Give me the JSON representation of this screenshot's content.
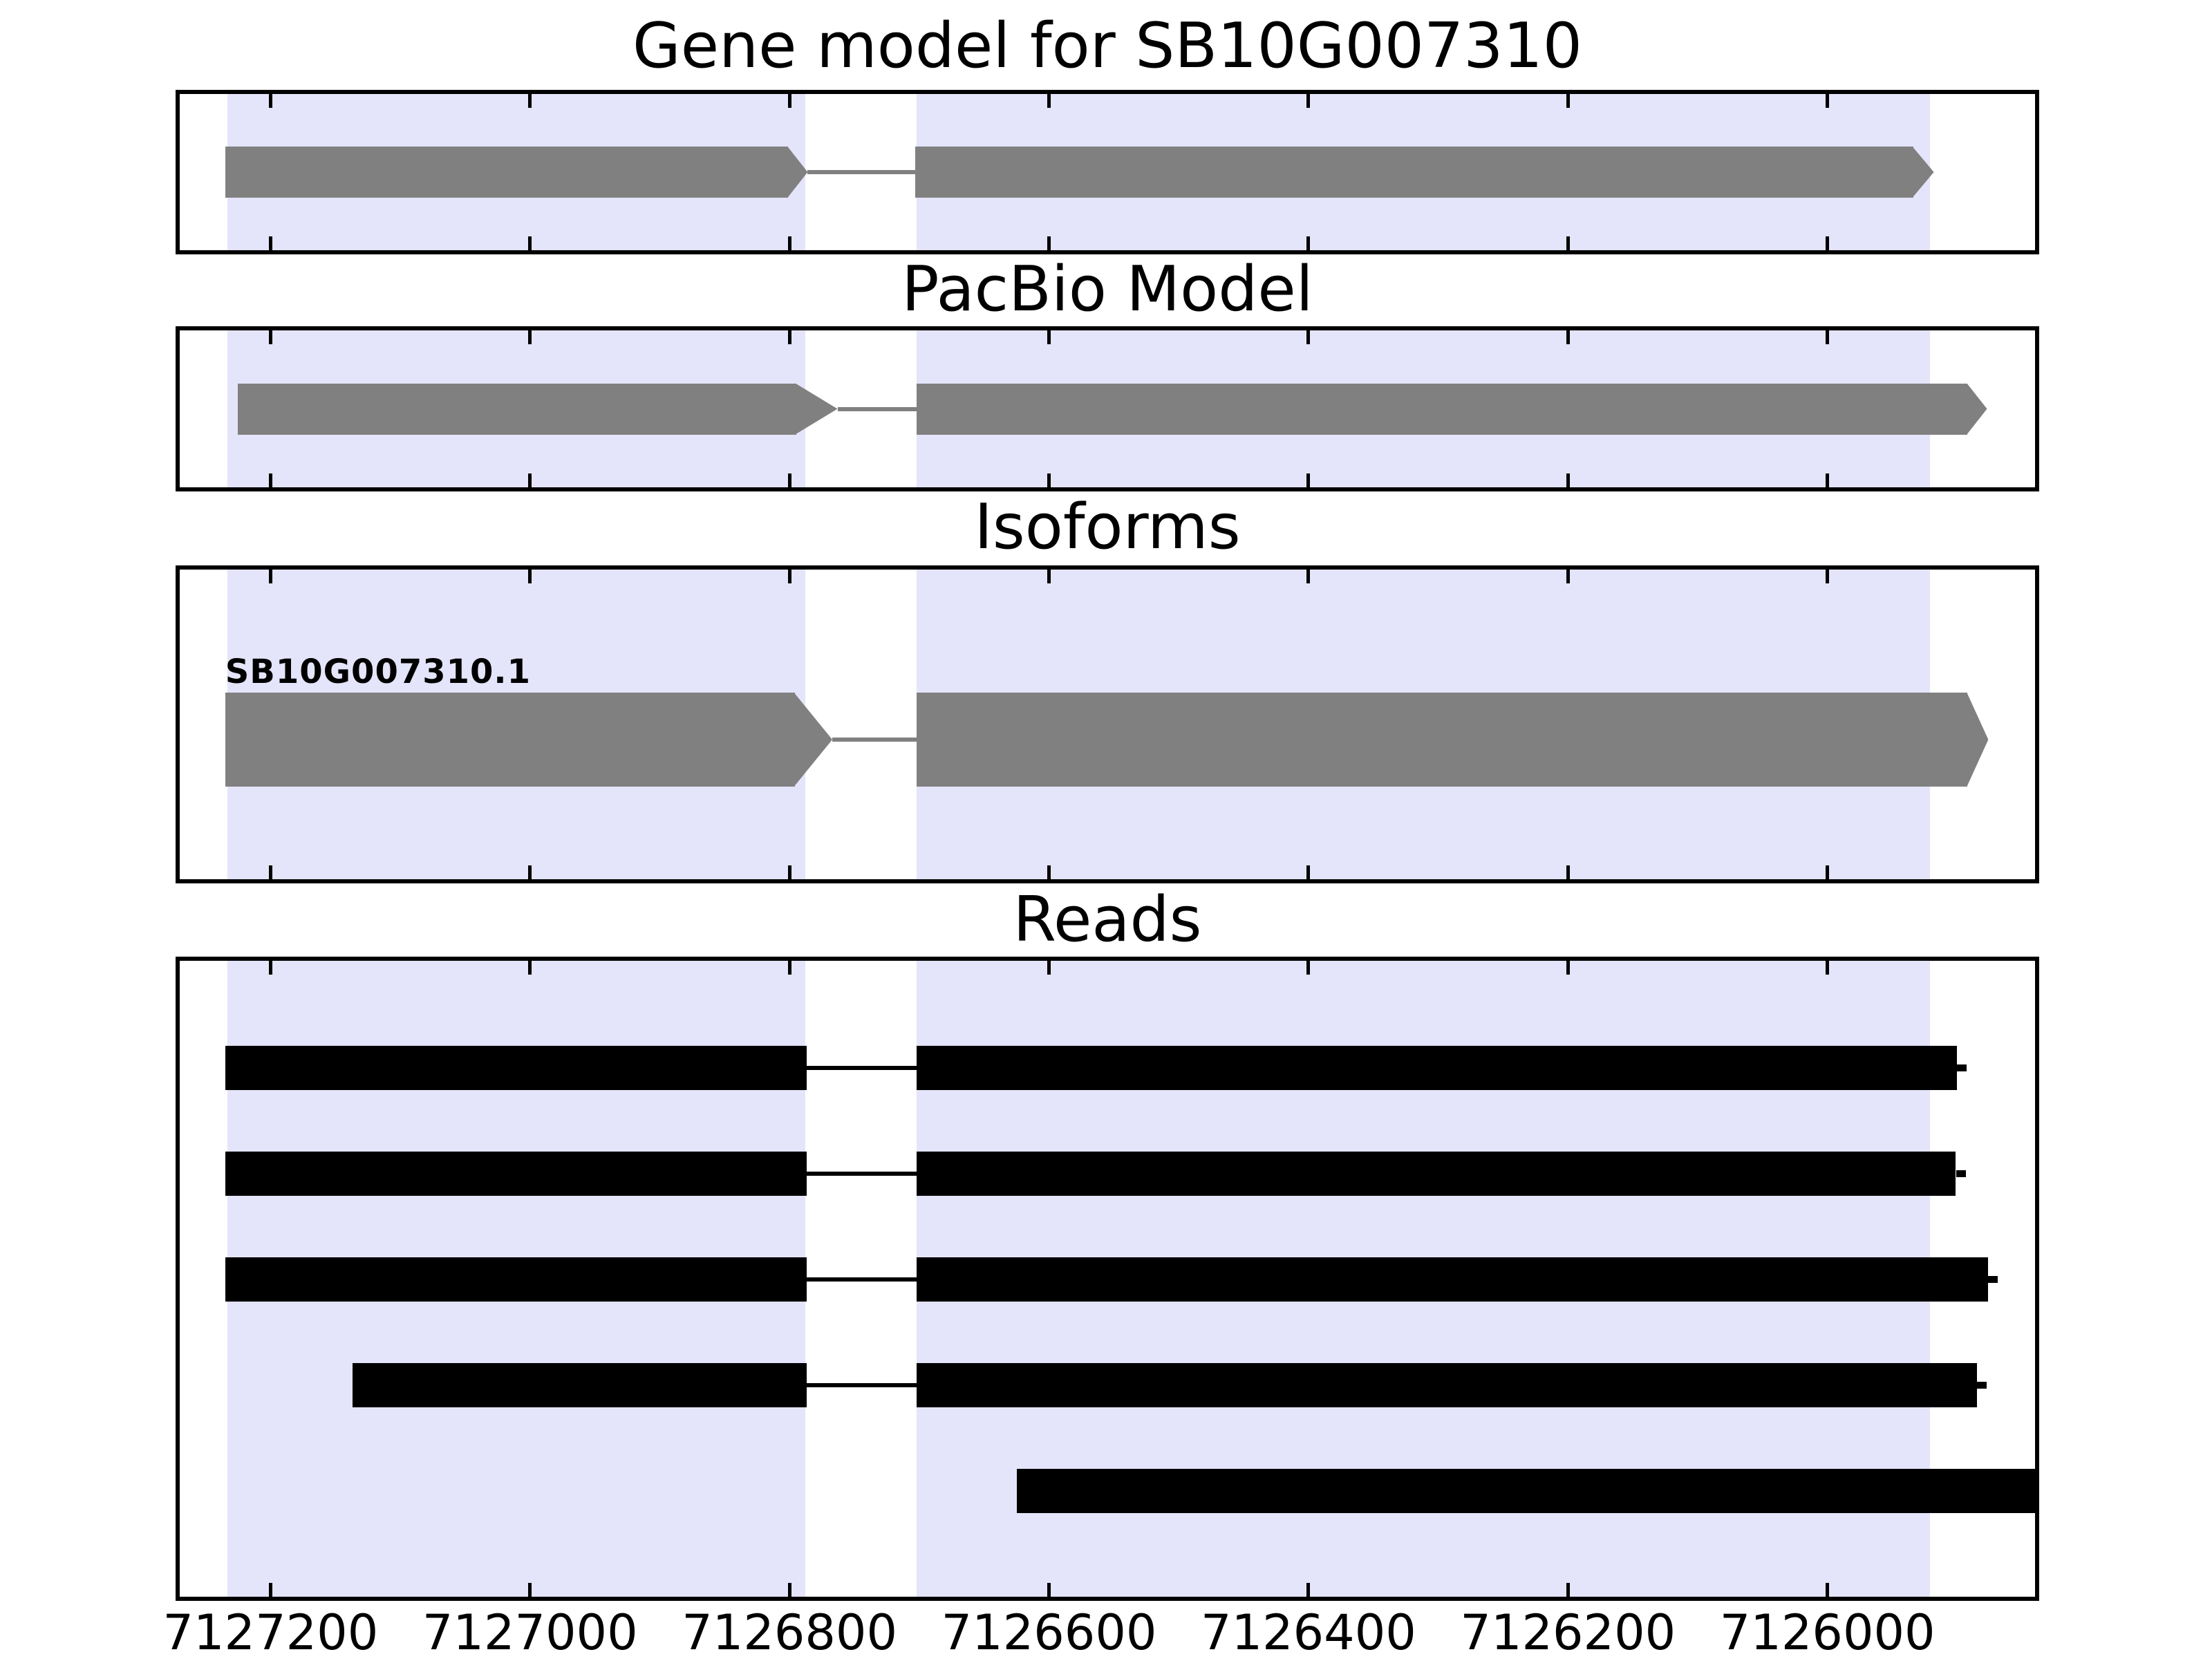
{
  "figure_title": "Gene model for SB10G007310",
  "chart_data": {
    "type": "genome-tracks",
    "gene_id": "SB10G007310",
    "x_axis": {
      "xlim": [
        7127270,
        7125840
      ],
      "direction": "decreasing",
      "ticks": [
        7127200,
        7127000,
        7126800,
        7126600,
        7126400,
        7126200,
        7126000
      ],
      "tick_labels": [
        "7127200",
        "7127000",
        "7126800",
        "7126600",
        "7126400",
        "7126200",
        "7126000"
      ]
    },
    "exon_highlights": [
      {
        "start": 7127233,
        "end": 7126788
      },
      {
        "start": 7126702,
        "end": 7125921
      }
    ],
    "colors": {
      "highlight": "#e4e4fa",
      "model": "#808080",
      "read": "#000000",
      "axis": "#000000",
      "background": "#ffffff"
    },
    "panels": [
      {
        "id": "gene-model",
        "title": "Gene model for SB10G007310",
        "kind": "model",
        "segments": [
          {
            "start": 7127235,
            "body_end": 7126801,
            "tip": 7126786
          },
          {
            "start": 7126703,
            "body_end": 7125934,
            "tip": 7125918
          }
        ]
      },
      {
        "id": "pacbio-model",
        "title": "PacBio Model",
        "kind": "model",
        "segments": [
          {
            "start": 7127225,
            "body_end": 7126795,
            "tip": 7126763
          },
          {
            "start": 7126702,
            "body_end": 7125892,
            "tip": 7125877
          }
        ]
      },
      {
        "id": "isoforms",
        "title": "Isoforms",
        "kind": "model",
        "feature_label": "SB10G007310.1",
        "segments": [
          {
            "start": 7127235,
            "body_end": 7126796,
            "tip": 7126767
          },
          {
            "start": 7126702,
            "body_end": 7125892,
            "tip": 7125876
          }
        ]
      },
      {
        "id": "reads",
        "title": "Reads",
        "kind": "reads",
        "reads": [
          {
            "blocks": [
              [
                7127235,
                7126787
              ],
              [
                7126702,
                7125900
              ]
            ],
            "spliced": true,
            "end_marker": true
          },
          {
            "blocks": [
              [
                7127235,
                7126787
              ],
              [
                7126702,
                7125901
              ]
            ],
            "spliced": true,
            "end_marker": true
          },
          {
            "blocks": [
              [
                7127235,
                7126787
              ],
              [
                7126702,
                7125876
              ]
            ],
            "spliced": true,
            "end_marker": true
          },
          {
            "blocks": [
              [
                7127137,
                7126787
              ],
              [
                7126702,
                7125885
              ]
            ],
            "spliced": true,
            "end_marker": true
          },
          {
            "blocks": [
              [
                7126625,
                7125840
              ]
            ],
            "spliced": false,
            "end_marker": false
          }
        ]
      }
    ]
  }
}
